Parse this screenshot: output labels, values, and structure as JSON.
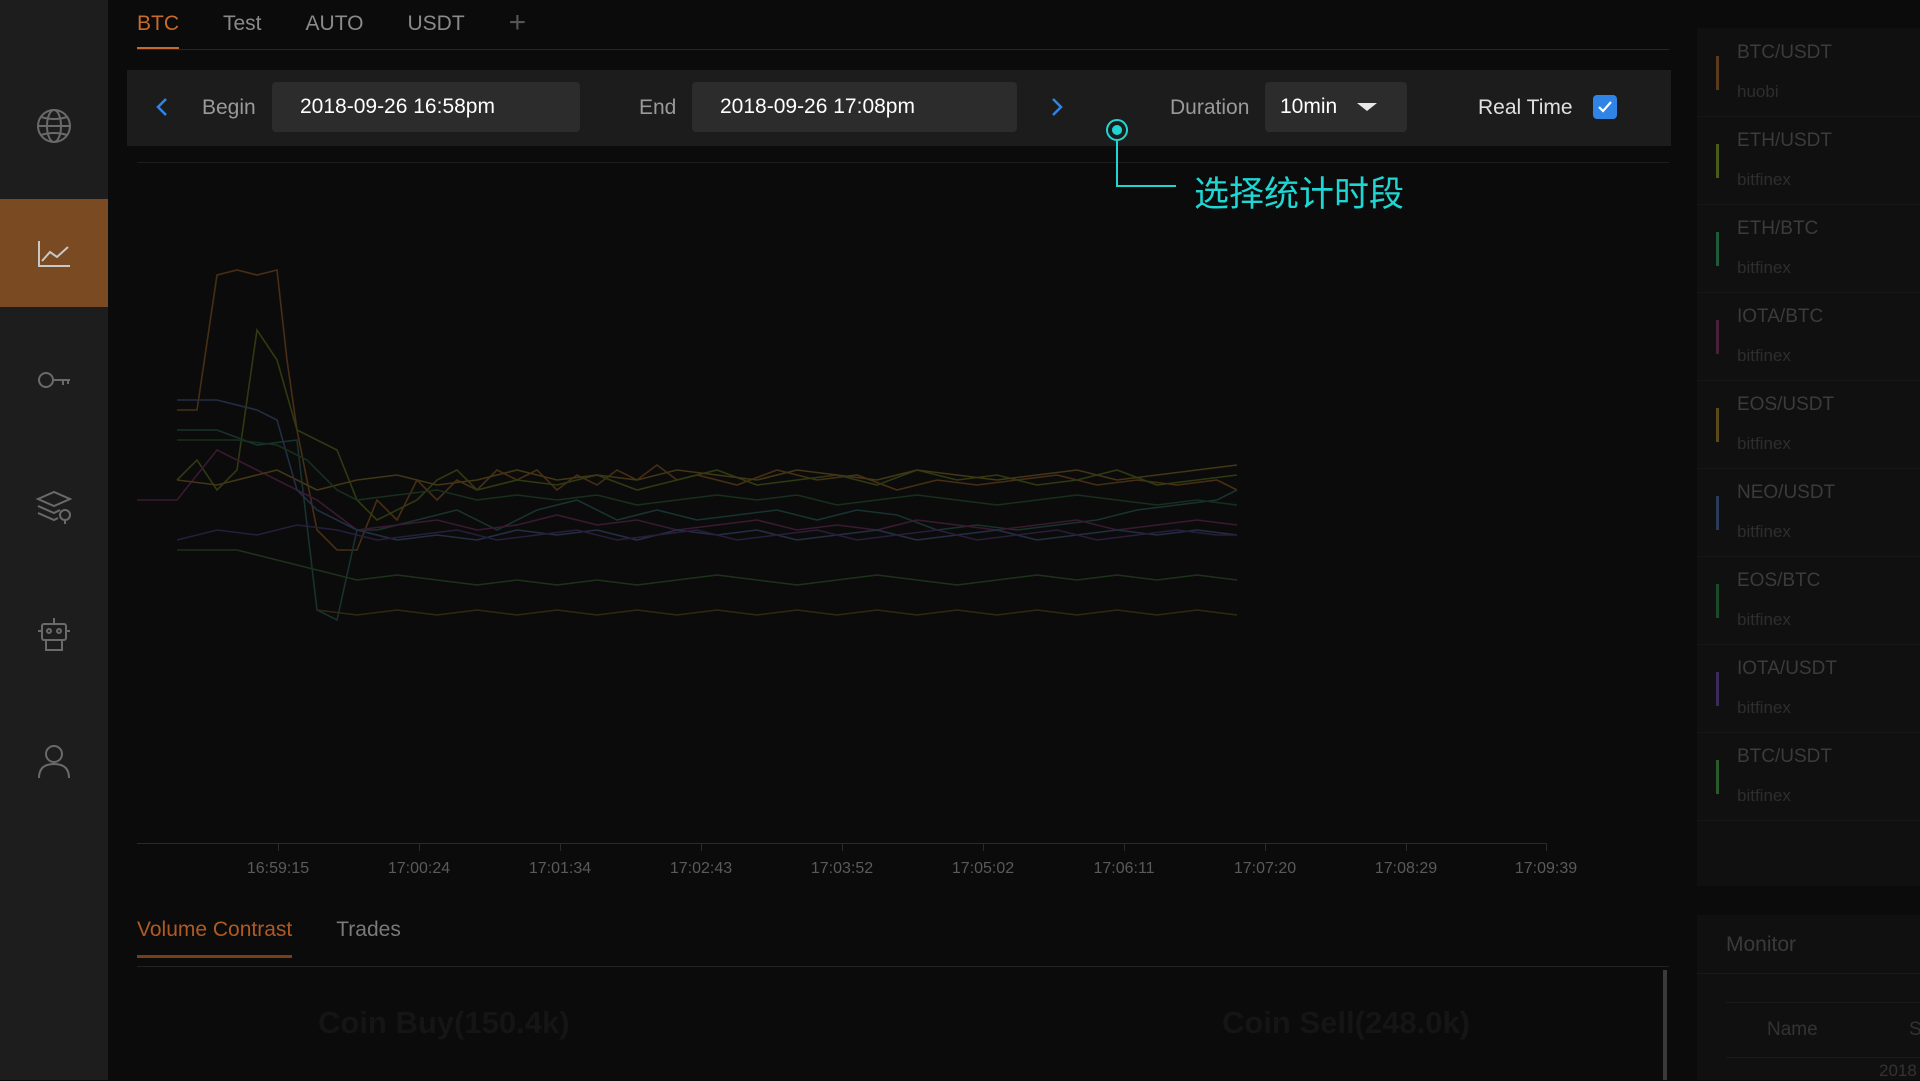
{
  "top_tabs": [
    {
      "label": "BTC"
    },
    {
      "label": "Test"
    },
    {
      "label": "AUTO"
    },
    {
      "label": "USDT"
    }
  ],
  "add_tab_icon": "plus-icon",
  "toolbar": {
    "begin_label": "Begin",
    "begin_value": "2018-09-26 16:58pm",
    "end_label": "End",
    "end_value": "2018-09-26 17:08pm",
    "duration_label": "Duration",
    "duration_value": "10min",
    "realtime_label": "Real Time",
    "realtime_checked": true
  },
  "annotation": {
    "text": "选择统计时段",
    "color": "#1fd6d2"
  },
  "sidebar": {
    "items": [
      {
        "icon": "globe-icon"
      },
      {
        "icon": "chart-icon",
        "active": true
      },
      {
        "icon": "key-icon"
      },
      {
        "icon": "layers-icon"
      },
      {
        "icon": "robot-icon"
      },
      {
        "icon": "user-icon"
      }
    ],
    "accent": "#7a4b22"
  },
  "chart_data": {
    "type": "line",
    "x_tick_labels": [
      "16:59:15",
      "17:00:24",
      "17:01:34",
      "17:02:43",
      "17:03:52",
      "17:05:02",
      "17:06:11",
      "17:07:20",
      "17:08:29",
      "17:09:39"
    ],
    "grid": false
  },
  "bottom_tabs": [
    {
      "label": "Volume Contrast"
    },
    {
      "label": "Trades"
    }
  ],
  "volume": {
    "buy_label": "Coin Buy(150.4k)",
    "sell_label": "Coin Sell(248.0k)"
  },
  "pairs": [
    {
      "name": "BTC/USDT",
      "exchange": "huobi",
      "color": "#5a3a1c"
    },
    {
      "name": "ETH/USDT",
      "exchange": "bitfinex",
      "color": "#4a5a1a"
    },
    {
      "name": "ETH/BTC",
      "exchange": "bitfinex",
      "color": "#1f5a3a"
    },
    {
      "name": "IOTA/BTC",
      "exchange": "bitfinex",
      "color": "#4a1f3a"
    },
    {
      "name": "EOS/USDT",
      "exchange": "bitfinex",
      "color": "#5a4a1a"
    },
    {
      "name": "NEO/USDT",
      "exchange": "bitfinex",
      "color": "#2a3a5a"
    },
    {
      "name": "EOS/BTC",
      "exchange": "bitfinex",
      "color": "#1a4a2a"
    },
    {
      "name": "IOTA/USDT",
      "exchange": "bitfinex",
      "color": "#3a2a5a"
    },
    {
      "name": "BTC/USDT",
      "exchange": "bitfinex",
      "color": "#2a5a2a"
    }
  ],
  "monitor": {
    "title": "Monitor",
    "col_name": "Name",
    "col_s": "S",
    "row_value": "2018"
  }
}
